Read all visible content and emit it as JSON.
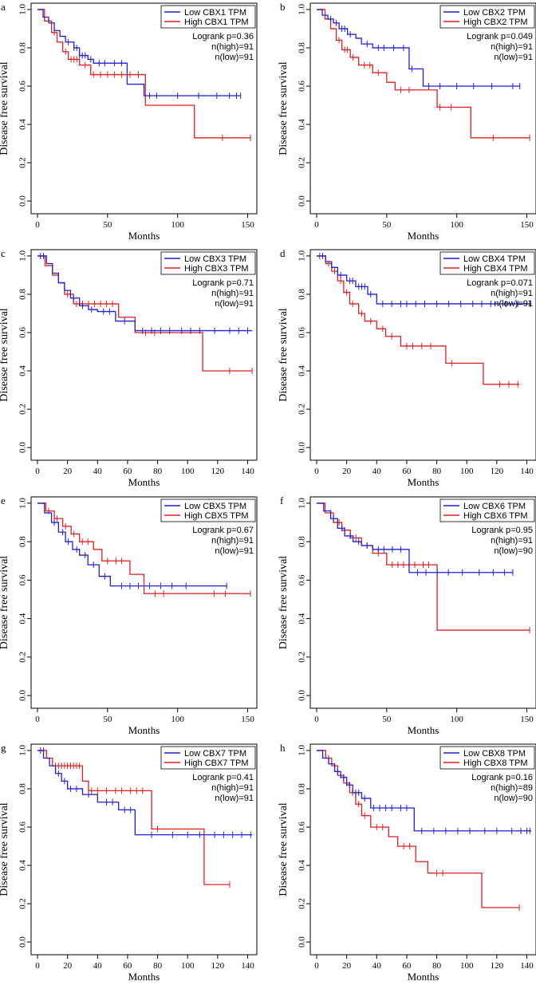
{
  "colors": {
    "low": "#1f1fd6",
    "high": "#e01f1f",
    "axis": "#000000",
    "frame": "#000000"
  },
  "chart_data": [
    {
      "type": "line",
      "panel_label": "a",
      "xlabel": "Months",
      "ylabel": "Disease free survival",
      "xlim": [
        0,
        150
      ],
      "xticks": [
        0,
        50,
        100,
        150
      ],
      "ylim": [
        0,
        1.0
      ],
      "yticks": [
        "0.0",
        "0.2",
        "0.4",
        "0.6",
        "0.8",
        "1.0"
      ],
      "legend": [
        "Low CBX1 TPM",
        "High CBX1 TPM"
      ],
      "stats": [
        "Logrank p=0.36",
        "n(high)=91",
        "n(low)=91"
      ],
      "series": [
        {
          "name": "Low CBX1 TPM",
          "color": "low",
          "x": [
            0,
            4,
            8,
            12,
            16,
            20,
            26,
            30,
            36,
            40,
            64,
            66,
            76,
            145
          ],
          "y": [
            1.0,
            0.96,
            0.93,
            0.89,
            0.86,
            0.83,
            0.8,
            0.76,
            0.74,
            0.72,
            0.61,
            0.61,
            0.55,
            0.55
          ],
          "censor_x": [
            22,
            26,
            28,
            30,
            32,
            34,
            38,
            44,
            48,
            55,
            60,
            80,
            85,
            100,
            115,
            128,
            137,
            142,
            145
          ]
        },
        {
          "name": "High CBX1 TPM",
          "color": "high",
          "x": [
            0,
            5,
            10,
            14,
            18,
            22,
            30,
            38,
            75,
            77,
            112,
            152
          ],
          "y": [
            1.0,
            0.94,
            0.88,
            0.83,
            0.78,
            0.74,
            0.71,
            0.66,
            0.66,
            0.5,
            0.33,
            0.33
          ],
          "censor_x": [
            12,
            20,
            24,
            26,
            28,
            34,
            40,
            45,
            50,
            55,
            60,
            66,
            72,
            132,
            152
          ]
        }
      ]
    },
    {
      "type": "line",
      "panel_label": "b",
      "xlabel": "Months",
      "ylabel": "Disease free survival",
      "xlim": [
        0,
        150
      ],
      "xticks": [
        0,
        50,
        100,
        150
      ],
      "ylim": [
        0,
        1.0
      ],
      "yticks": [
        "0.0",
        "0.2",
        "0.4",
        "0.6",
        "0.8",
        "1.0"
      ],
      "legend": [
        "Low CBX2 TPM",
        "High CBX2 TPM"
      ],
      "stats": [
        "Logrank p=0.049",
        "n(high)=91",
        "n(low)=91"
      ],
      "series": [
        {
          "name": "Low CBX2 TPM",
          "color": "low",
          "x": [
            0,
            4,
            8,
            12,
            16,
            22,
            28,
            32,
            40,
            66,
            76,
            145
          ],
          "y": [
            1.0,
            0.97,
            0.95,
            0.93,
            0.9,
            0.87,
            0.85,
            0.82,
            0.8,
            0.69,
            0.6,
            0.6
          ],
          "censor_x": [
            10,
            14,
            18,
            20,
            24,
            36,
            44,
            48,
            55,
            62,
            68,
            80,
            88,
            100,
            112,
            125,
            140,
            145
          ]
        },
        {
          "name": "High CBX2 TPM",
          "color": "high",
          "x": [
            0,
            6,
            10,
            14,
            18,
            24,
            30,
            40,
            50,
            56,
            86,
            110,
            152
          ],
          "y": [
            1.0,
            0.95,
            0.9,
            0.84,
            0.79,
            0.75,
            0.71,
            0.67,
            0.62,
            0.58,
            0.49,
            0.33,
            0.33
          ],
          "censor_x": [
            16,
            20,
            22,
            26,
            34,
            38,
            44,
            60,
            66,
            88,
            96,
            126,
            152
          ]
        }
      ]
    },
    {
      "type": "line",
      "panel_label": "c",
      "xlabel": "Months",
      "ylabel": "Disease free survival",
      "xlim": [
        0,
        140
      ],
      "xticks": [
        0,
        20,
        40,
        60,
        80,
        100,
        120,
        140
      ],
      "ylim": [
        0,
        1.0
      ],
      "yticks": [
        "0.0",
        "0.2",
        "0.4",
        "0.6",
        "0.8",
        "1.0"
      ],
      "legend": [
        "Low CBX3 TPM",
        "High CBX3 TPM"
      ],
      "stats": [
        "Logrank p=0.71",
        "n(high)=91",
        "n(low)=91"
      ],
      "series": [
        {
          "name": "Low CBX3 TPM",
          "color": "low",
          "x": [
            0,
            6,
            10,
            14,
            18,
            22,
            28,
            34,
            40,
            52,
            65,
            143
          ],
          "y": [
            1.0,
            0.96,
            0.91,
            0.86,
            0.82,
            0.78,
            0.74,
            0.72,
            0.71,
            0.66,
            0.61,
            0.61
          ],
          "censor_x": [
            2,
            4,
            24,
            30,
            36,
            44,
            48,
            58,
            70,
            76,
            82,
            88,
            96,
            102,
            108,
            118,
            128,
            134,
            140
          ]
        },
        {
          "name": "High CBX3 TPM",
          "color": "high",
          "x": [
            0,
            5,
            10,
            14,
            18,
            24,
            54,
            65,
            110,
            143
          ],
          "y": [
            1.0,
            0.95,
            0.9,
            0.86,
            0.8,
            0.75,
            0.68,
            0.6,
            0.4,
            0.4
          ],
          "censor_x": [
            20,
            26,
            30,
            34,
            38,
            42,
            46,
            50,
            72,
            78,
            128,
            143
          ]
        }
      ]
    },
    {
      "type": "line",
      "panel_label": "d",
      "xlabel": "Months",
      "ylabel": "Disease free survival",
      "xlim": [
        0,
        140
      ],
      "xticks": [
        0,
        20,
        40,
        60,
        80,
        100,
        120,
        140
      ],
      "ylim": [
        0,
        1.0
      ],
      "yticks": [
        "0.0",
        "0.2",
        "0.4",
        "0.6",
        "0.8",
        "1.0"
      ],
      "legend": [
        "Low CBX4 TPM",
        "High CBX4 TPM"
      ],
      "stats": [
        "Logrank p=0.071",
        "n(high)=91",
        "n(low)=91"
      ],
      "series": [
        {
          "name": "Low CBX4 TPM",
          "color": "low",
          "x": [
            0,
            6,
            10,
            14,
            20,
            26,
            34,
            40,
            143
          ],
          "y": [
            1.0,
            0.97,
            0.94,
            0.9,
            0.87,
            0.84,
            0.8,
            0.75,
            0.75
          ],
          "censor_x": [
            4,
            16,
            22,
            24,
            28,
            30,
            32,
            36,
            44,
            50,
            56,
            60,
            66,
            72,
            80,
            88,
            96,
            104,
            110,
            116,
            126,
            134,
            142
          ]
        },
        {
          "name": "High CBX4 TPM",
          "color": "high",
          "x": [
            0,
            6,
            10,
            14,
            18,
            22,
            28,
            32,
            40,
            46,
            56,
            86,
            111,
            135
          ],
          "y": [
            1.0,
            0.96,
            0.92,
            0.87,
            0.81,
            0.75,
            0.7,
            0.66,
            0.62,
            0.58,
            0.53,
            0.44,
            0.33,
            0.33
          ],
          "censor_x": [
            2,
            8,
            12,
            16,
            20,
            24,
            30,
            36,
            44,
            50,
            60,
            64,
            70,
            76,
            90,
            122,
            128,
            134
          ]
        }
      ]
    },
    {
      "type": "line",
      "panel_label": "e",
      "xlabel": "Months",
      "ylabel": "Disease free survival",
      "xlim": [
        0,
        150
      ],
      "xticks": [
        0,
        50,
        100,
        150
      ],
      "ylim": [
        0,
        1.0
      ],
      "yticks": [
        "0.0",
        "0.2",
        "0.4",
        "0.6",
        "0.8",
        "1.0"
      ],
      "legend": [
        "Low CBX5 TPM",
        "High CBX5 TPM"
      ],
      "stats": [
        "Logrank p=0.67",
        "n(high)=91",
        "n(low)=91"
      ],
      "series": [
        {
          "name": "Low CBX5 TPM",
          "color": "low",
          "x": [
            0,
            5,
            10,
            15,
            20,
            25,
            30,
            36,
            44,
            52,
            55,
            135
          ],
          "y": [
            1.0,
            0.95,
            0.9,
            0.85,
            0.8,
            0.76,
            0.73,
            0.68,
            0.62,
            0.57,
            0.57,
            0.57
          ],
          "censor_x": [
            12,
            18,
            22,
            28,
            34,
            40,
            48,
            60,
            66,
            72,
            80,
            88,
            96,
            106,
            135
          ]
        },
        {
          "name": "High CBX5 TPM",
          "color": "high",
          "x": [
            0,
            6,
            12,
            18,
            24,
            30,
            40,
            46,
            66,
            76,
            152
          ],
          "y": [
            1.0,
            0.96,
            0.92,
            0.88,
            0.84,
            0.8,
            0.76,
            0.7,
            0.63,
            0.53,
            0.53
          ],
          "censor_x": [
            8,
            14,
            20,
            26,
            32,
            36,
            50,
            56,
            60,
            84,
            90,
            126,
            134,
            152
          ]
        }
      ]
    },
    {
      "type": "line",
      "panel_label": "f",
      "xlabel": "Months",
      "ylabel": "Disease free survival",
      "xlim": [
        0,
        150
      ],
      "xticks": [
        0,
        50,
        100,
        150
      ],
      "ylim": [
        0,
        1.0
      ],
      "yticks": [
        "0.0",
        "0.2",
        "0.4",
        "0.6",
        "0.8",
        "1.0"
      ],
      "legend": [
        "Low CBX6 TPM",
        "High CBX6 TPM"
      ],
      "stats": [
        "Logrank p=0.95",
        "n(high)=91",
        "n(low)=90"
      ],
      "series": [
        {
          "name": "Low CBX6 TPM",
          "color": "low",
          "x": [
            0,
            5,
            10,
            15,
            20,
            26,
            32,
            40,
            66,
            140
          ],
          "y": [
            1.0,
            0.96,
            0.92,
            0.87,
            0.83,
            0.8,
            0.78,
            0.76,
            0.64,
            0.64
          ],
          "censor_x": [
            12,
            18,
            24,
            30,
            36,
            44,
            48,
            54,
            60,
            72,
            78,
            86,
            94,
            104,
            116,
            126,
            134,
            140
          ]
        },
        {
          "name": "High CBX6 TPM",
          "color": "high",
          "x": [
            0,
            6,
            12,
            18,
            24,
            32,
            40,
            50,
            86,
            152
          ],
          "y": [
            1.0,
            0.95,
            0.9,
            0.86,
            0.82,
            0.78,
            0.74,
            0.68,
            0.34,
            0.34
          ],
          "censor_x": [
            10,
            16,
            20,
            28,
            36,
            44,
            54,
            58,
            62,
            66,
            70,
            76,
            80,
            152
          ]
        }
      ]
    },
    {
      "type": "line",
      "panel_label": "g",
      "xlabel": "Months",
      "ylabel": "Disease free survival",
      "xlim": [
        0,
        140
      ],
      "xticks": [
        0,
        20,
        40,
        60,
        80,
        100,
        120,
        140
      ],
      "ylim": [
        0,
        1.0
      ],
      "yticks": [
        "0.0",
        "0.2",
        "0.4",
        "0.6",
        "0.8",
        "1.0"
      ],
      "legend": [
        "Low CBX7 TPM",
        "High CBX7 TPM"
      ],
      "stats": [
        "Logrank p=0.41",
        "n(high)=91",
        "n(low)=91"
      ],
      "series": [
        {
          "name": "Low CBX7 TPM",
          "color": "low",
          "x": [
            0,
            4,
            8,
            12,
            16,
            20,
            30,
            40,
            54,
            65,
            143
          ],
          "y": [
            1.0,
            0.96,
            0.92,
            0.88,
            0.84,
            0.8,
            0.77,
            0.73,
            0.69,
            0.56,
            0.56
          ],
          "censor_x": [
            2,
            14,
            18,
            22,
            26,
            34,
            46,
            50,
            58,
            62,
            76,
            90,
            100,
            108,
            118,
            124,
            130,
            136,
            142
          ]
        },
        {
          "name": "High CBX7 TPM",
          "color": "high",
          "x": [
            0,
            6,
            10,
            30,
            34,
            76,
            111,
            128
          ],
          "y": [
            1.0,
            0.96,
            0.92,
            0.84,
            0.79,
            0.59,
            0.3,
            0.3
          ],
          "censor_x": [
            4,
            12,
            14,
            16,
            18,
            20,
            22,
            24,
            26,
            28,
            36,
            40,
            46,
            52,
            56,
            62,
            66,
            70,
            80,
            128
          ]
        }
      ]
    },
    {
      "type": "line",
      "panel_label": "h",
      "xlabel": "Months",
      "ylabel": "Disease free survival",
      "xlim": [
        0,
        140
      ],
      "xticks": [
        0,
        20,
        40,
        60,
        80,
        100,
        120,
        140
      ],
      "ylim": [
        0,
        1.0
      ],
      "yticks": [
        "0.0",
        "0.2",
        "0.4",
        "0.6",
        "0.8",
        "1.0"
      ],
      "legend": [
        "Low CBX8 TPM",
        "High CBX8 TPM"
      ],
      "stats": [
        "Logrank p=0.16",
        "n(high)=89",
        "n(low)=90"
      ],
      "series": [
        {
          "name": "Low CBX8 TPM",
          "color": "low",
          "x": [
            0,
            4,
            8,
            12,
            16,
            20,
            24,
            30,
            36,
            65,
            143
          ],
          "y": [
            1.0,
            0.96,
            0.93,
            0.89,
            0.86,
            0.82,
            0.78,
            0.75,
            0.7,
            0.58,
            0.58
          ],
          "censor_x": [
            14,
            18,
            22,
            26,
            28,
            32,
            38,
            42,
            46,
            50,
            56,
            60,
            70,
            78,
            86,
            94,
            102,
            112,
            120,
            130,
            136,
            140,
            142
          ]
        },
        {
          "name": "High CBX8 TPM",
          "color": "high",
          "x": [
            0,
            6,
            10,
            14,
            18,
            22,
            26,
            30,
            36,
            48,
            54,
            66,
            74,
            110,
            135
          ],
          "y": [
            1.0,
            0.96,
            0.92,
            0.87,
            0.83,
            0.78,
            0.72,
            0.66,
            0.6,
            0.55,
            0.5,
            0.42,
            0.36,
            0.18,
            0.18
          ],
          "censor_x": [
            8,
            16,
            20,
            24,
            28,
            32,
            40,
            44,
            58,
            62,
            80,
            84,
            135
          ]
        }
      ]
    }
  ]
}
